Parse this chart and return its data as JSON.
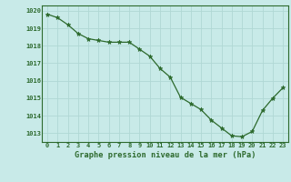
{
  "x": [
    0,
    1,
    2,
    3,
    4,
    5,
    6,
    7,
    8,
    9,
    10,
    11,
    12,
    13,
    14,
    15,
    16,
    17,
    18,
    19,
    20,
    21,
    22,
    23
  ],
  "y": [
    1019.8,
    1019.6,
    1019.2,
    1018.7,
    1018.4,
    1018.3,
    1018.2,
    1018.2,
    1018.2,
    1017.8,
    1017.4,
    1016.7,
    1016.2,
    1015.05,
    1014.7,
    1014.35,
    1013.75,
    1013.3,
    1012.85,
    1012.8,
    1013.1,
    1014.3,
    1015.0,
    1015.6
  ],
  "line_color": "#2d6a2d",
  "marker": "*",
  "bg_color": "#c8eae8",
  "grid_color": "#b0d8d4",
  "ylabel_ticks": [
    1013,
    1014,
    1015,
    1016,
    1017,
    1018,
    1019,
    1020
  ],
  "xlabel_ticks": [
    0,
    1,
    2,
    3,
    4,
    5,
    6,
    7,
    8,
    9,
    10,
    11,
    12,
    13,
    14,
    15,
    16,
    17,
    18,
    19,
    20,
    21,
    22,
    23
  ],
  "ylim": [
    1012.5,
    1020.3
  ],
  "xlim": [
    -0.5,
    23.5
  ],
  "xlabel": "Graphe pression niveau de la mer (hPa)",
  "tick_fontsize": 5.0,
  "xlabel_fontsize": 6.2
}
